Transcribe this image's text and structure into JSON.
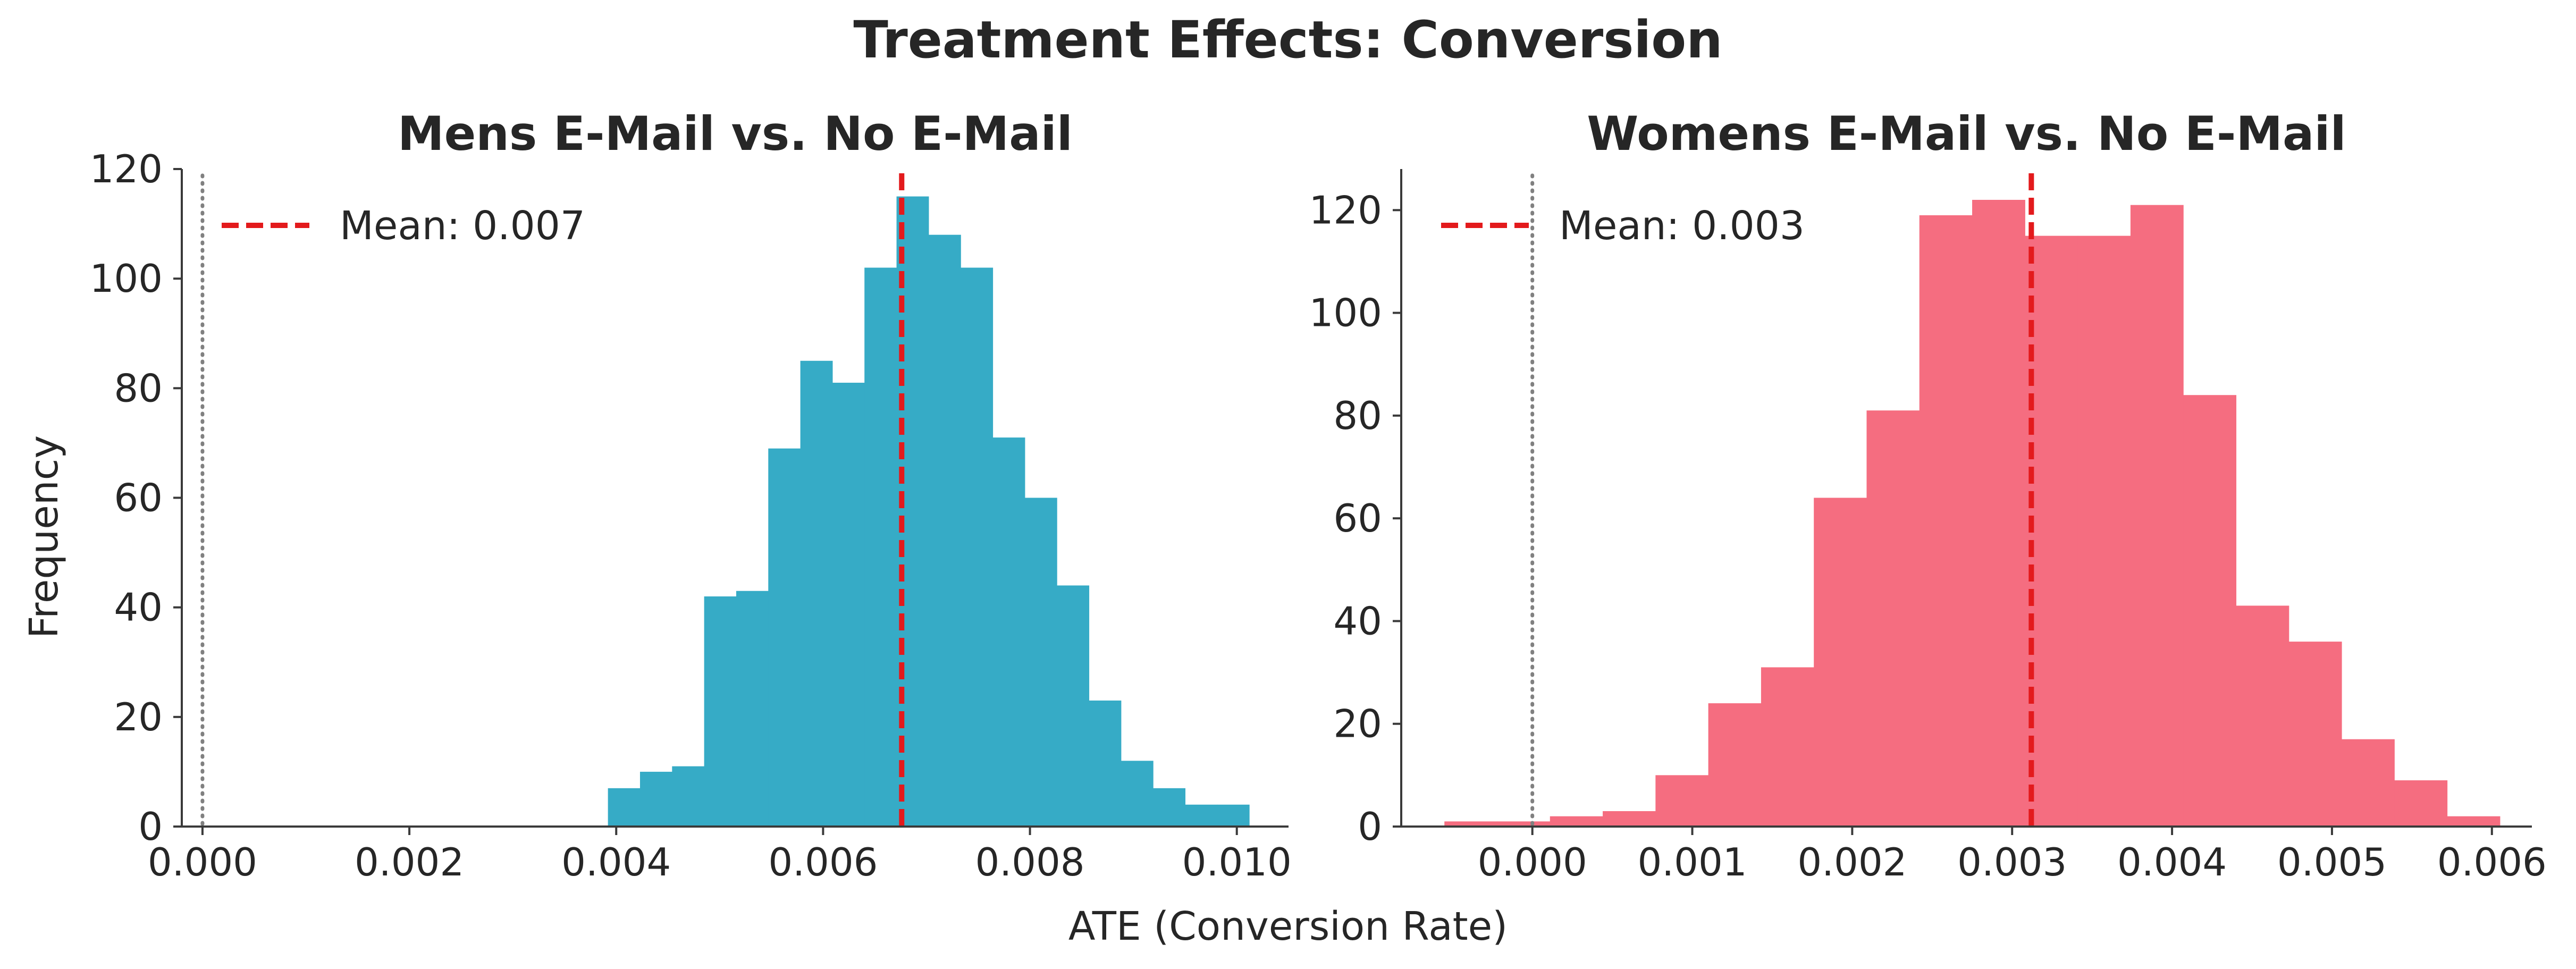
{
  "figure": {
    "title": "Treatment Effects: Conversion",
    "xlabel": "ATE (Conversion Rate)",
    "ylabel": "Frequency"
  },
  "chart_data": [
    {
      "type": "bar",
      "title": "Mens E-Mail vs. No E-Mail",
      "xlabel": "ATE (Conversion Rate)",
      "ylabel": "Frequency",
      "color": "#36abc6",
      "mean_line_color": "#e31a1c",
      "zero_line_color": "#808080",
      "xlim": [
        -0.0002,
        0.0105
      ],
      "ylim": [
        0,
        120
      ],
      "xticks": [
        0.0,
        0.002,
        0.004,
        0.006,
        0.008,
        0.01
      ],
      "xtick_labels": [
        "0.000",
        "0.002",
        "0.004",
        "0.006",
        "0.008",
        "0.010"
      ],
      "yticks": [
        0,
        20,
        40,
        60,
        80,
        100,
        120
      ],
      "ytick_labels": [
        "0",
        "20",
        "40",
        "60",
        "80",
        "100",
        "120"
      ],
      "bin_edges": [
        0.00392,
        0.00423,
        0.00454,
        0.00485,
        0.00516,
        0.00547,
        0.00578,
        0.00609,
        0.0064,
        0.00671,
        0.00702,
        0.00733,
        0.00764,
        0.00795,
        0.00826,
        0.00857,
        0.00888,
        0.00919,
        0.0095,
        0.00981,
        0.01012
      ],
      "counts": [
        7,
        10,
        11,
        42,
        43,
        69,
        85,
        81,
        102,
        115,
        108,
        102,
        71,
        60,
        44,
        23,
        12,
        7,
        4,
        4
      ],
      "mean": 0.00676,
      "legend_label": "Mean: 0.007",
      "legend_loc": "upper left",
      "grid": false
    },
    {
      "type": "bar",
      "title": "Womens E-Mail vs. No E-Mail",
      "xlabel": "ATE (Conversion Rate)",
      "ylabel": "",
      "color": "#f56d80",
      "mean_line_color": "#e31a1c",
      "zero_line_color": "#808080",
      "xlim": [
        -0.00082,
        0.00625
      ],
      "ylim": [
        0,
        128
      ],
      "xticks": [
        0.0,
        0.001,
        0.002,
        0.003,
        0.004,
        0.005,
        0.006
      ],
      "xtick_labels": [
        "0.000",
        "0.001",
        "0.002",
        "0.003",
        "0.004",
        "0.005",
        "0.006"
      ],
      "yticks": [
        0,
        20,
        40,
        60,
        80,
        100,
        120
      ],
      "ytick_labels": [
        "0",
        "20",
        "40",
        "60",
        "80",
        "100",
        "120"
      ],
      "bin_edges": [
        -0.00055,
        -0.00022,
        0.00011,
        0.00044,
        0.00077,
        0.0011,
        0.00143,
        0.00176,
        0.00209,
        0.00242,
        0.00275,
        0.00308,
        0.00341,
        0.00374,
        0.00407,
        0.0044,
        0.00473,
        0.00506,
        0.00539,
        0.00572,
        0.00605
      ],
      "counts": [
        1,
        1,
        2,
        3,
        10,
        24,
        31,
        64,
        81,
        119,
        122,
        115,
        115,
        121,
        84,
        43,
        36,
        17,
        9,
        2
      ],
      "mean": 0.00312,
      "legend_label": "Mean: 0.003",
      "legend_loc": "upper left",
      "grid": false
    }
  ]
}
